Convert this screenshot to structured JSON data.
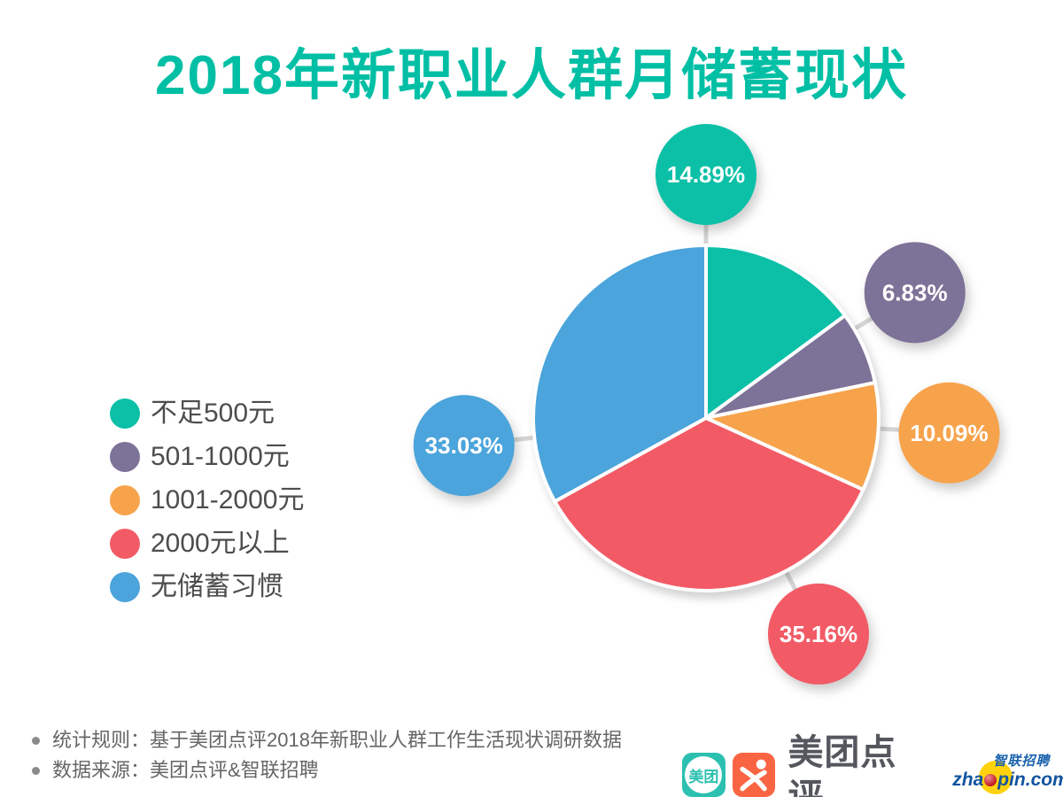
{
  "title": "2018年新职业人群月储蓄现状",
  "colors": {
    "accent_teal": "#00BFA5",
    "note_text": "#666666",
    "legend_text": "#4d4d4d",
    "connector_gray": "#d6d6d6",
    "meituan_teal": "#2BC0B0",
    "dianping_orange": "#F96542",
    "zhaopin_blue": "#10539F",
    "zhaopin_yellow": "#FFD20D"
  },
  "chart_data": {
    "type": "pie",
    "title": "2018年新职业人群月储蓄现状",
    "categories": [
      "不足500元",
      "501-1000元",
      "1001-2000元",
      "2000元以上",
      "无储蓄习惯"
    ],
    "values": [
      14.89,
      6.83,
      10.09,
      35.16,
      33.03
    ],
    "labels": [
      "14.89%",
      "6.83%",
      "10.09%",
      "35.16%",
      "33.03%"
    ],
    "colors": [
      "#0BC0A7",
      "#7D7298",
      "#F7A34C",
      "#F25B66",
      "#4BA4DB"
    ],
    "start_angle_deg": 0,
    "direction": "clockwise",
    "legend_position": "left",
    "layout": {
      "center": [
        797,
        472
      ],
      "radius": 195,
      "separator_color": "#ffffff",
      "separator_width": 4,
      "connector_color": "#d6d6d6",
      "connector_width": 5,
      "bubble_radius": 57,
      "bubble_distance": 275,
      "bubble_angles_deg": [
        0,
        59,
        93.5,
        152.5,
        263.5
      ]
    }
  },
  "footer": {
    "notes": [
      {
        "text": "统计规则：基于美团点评2018年新职业人群工作生活现状调研数据"
      },
      {
        "text": "数据来源：美团点评&智联招聘"
      }
    ],
    "brand": {
      "meituan_icon_text": "美团",
      "brand_name": "美团点评",
      "zhaopin_cn": "智联招聘",
      "zhaopin_url_left": "zha",
      "zhaopin_url_right": "pin.com"
    }
  }
}
